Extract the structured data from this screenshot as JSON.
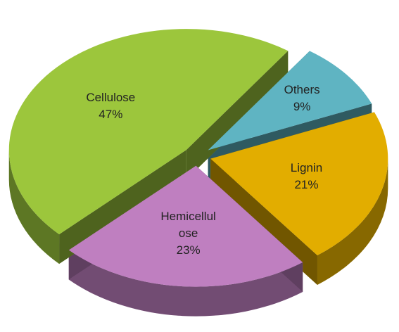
{
  "chart_data": {
    "type": "pie",
    "categories": [
      "Others",
      "Lignin",
      "Hemicellulose",
      "Cellulose"
    ],
    "values": [
      9,
      21,
      23,
      47
    ],
    "value_labels": [
      "9%",
      "21%",
      "23%",
      "47%"
    ],
    "colors": [
      "#5fb4c2",
      "#e2ad00",
      "#bf7fc0",
      "#9cc63c"
    ]
  }
}
